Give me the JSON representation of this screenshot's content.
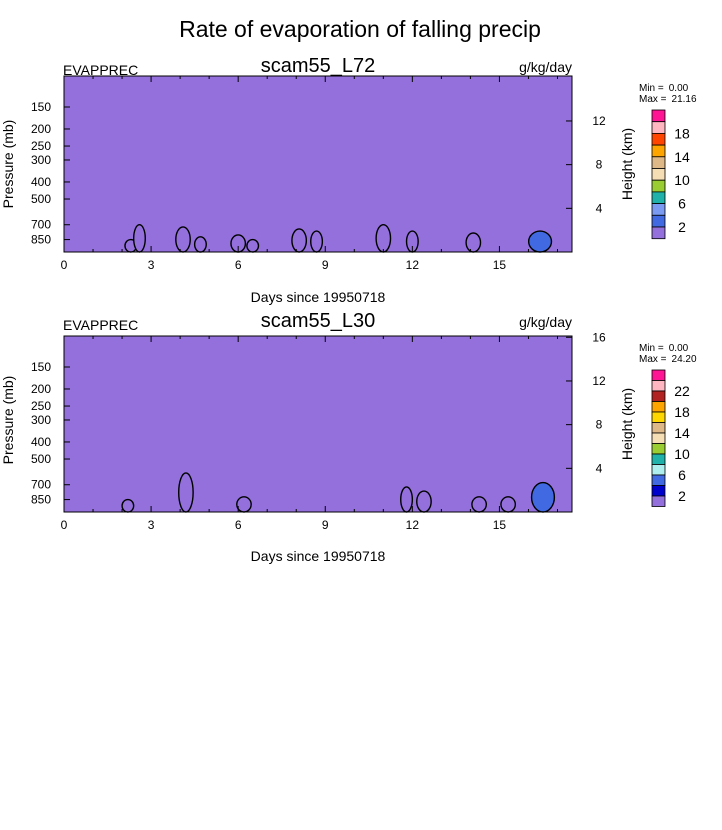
{
  "figure_title": "Rate of evaporation of falling precip",
  "colors": {
    "background_fill": "#9370DB",
    "frame": "#000000",
    "contour_line": "#000000",
    "contour_fill_low": "#4169E1",
    "contour_fill_high": "#0000CD"
  },
  "chart_data": [
    {
      "type": "heatmap",
      "title": "scam55_L72",
      "left_label": "EVAPPREC",
      "right_label": "g/kg/day",
      "xlabel": "Days since 19950718",
      "ylabel": "Pressure (mb)",
      "y2label": "Height (km)",
      "xlim": [
        0,
        17.5
      ],
      "x_ticks": [
        0,
        3,
        6,
        9,
        12,
        15
      ],
      "y_scale": "log",
      "ylim_pressure": [
        1000,
        100
      ],
      "y_ticks": [
        150,
        200,
        250,
        300,
        400,
        500,
        700,
        850
      ],
      "y2_ticks": [
        4,
        8,
        12
      ],
      "minmax": {
        "min_label": "Min =",
        "min": "0.00",
        "max_label": "Max =",
        "max": "21.16"
      },
      "colorbar": {
        "labels": [
          "2",
          "6",
          "10",
          "14",
          "18"
        ],
        "colors": [
          "#9370DB",
          "#4169E1",
          "#7B9BF2",
          "#20B2AA",
          "#9ACD32",
          "#F5DEB3",
          "#DEB887",
          "#FFA500",
          "#FF4500",
          "#FFB6C1",
          "#FF1493"
        ]
      },
      "cells": [
        {
          "day": 2.3,
          "p": 850,
          "v": 2
        },
        {
          "day": 2.6,
          "p": 700,
          "v": 2
        },
        {
          "day": 4.1,
          "p": 720,
          "v": 3
        },
        {
          "day": 4.7,
          "p": 820,
          "v": 2
        },
        {
          "day": 6.0,
          "p": 800,
          "v": 3
        },
        {
          "day": 6.5,
          "p": 850,
          "v": 2
        },
        {
          "day": 8.1,
          "p": 740,
          "v": 3
        },
        {
          "day": 8.7,
          "p": 760,
          "v": 2
        },
        {
          "day": 11.0,
          "p": 700,
          "v": 3
        },
        {
          "day": 12.0,
          "p": 760,
          "v": 2
        },
        {
          "day": 14.1,
          "p": 780,
          "v": 3
        },
        {
          "day": 16.4,
          "p": 760,
          "v": 6
        }
      ]
    },
    {
      "type": "heatmap",
      "title": "scam55_L30",
      "left_label": "EVAPPREC",
      "right_label": "g/kg/day",
      "xlabel": "Days since 19950718",
      "ylabel": "Pressure (mb)",
      "y2label": "Height (km)",
      "xlim": [
        0,
        17.5
      ],
      "x_ticks": [
        0,
        3,
        6,
        9,
        12,
        15
      ],
      "y_scale": "log",
      "ylim_pressure": [
        1000,
        100
      ],
      "y_ticks": [
        150,
        200,
        250,
        300,
        400,
        500,
        700,
        850
      ],
      "y2_ticks": [
        4,
        8,
        12,
        16
      ],
      "minmax": {
        "min_label": "Min =",
        "min": "0.00",
        "max_label": "Max =",
        "max": "24.20"
      },
      "colorbar": {
        "labels": [
          "2",
          "6",
          "10",
          "14",
          "18",
          "22"
        ],
        "colors": [
          "#9370DB",
          "#0000CD",
          "#4169E1",
          "#AFEEEE",
          "#20B2AA",
          "#9ACD32",
          "#F5DEB3",
          "#DEB887",
          "#FFD700",
          "#FFA500",
          "#B22222",
          "#FFB6C1",
          "#FF1493"
        ]
      },
      "cells": [
        {
          "day": 2.2,
          "p": 850,
          "v": 2
        },
        {
          "day": 4.2,
          "p": 600,
          "v": 3
        },
        {
          "day": 6.2,
          "p": 820,
          "v": 3
        },
        {
          "day": 11.8,
          "p": 720,
          "v": 2
        },
        {
          "day": 12.4,
          "p": 760,
          "v": 3
        },
        {
          "day": 14.3,
          "p": 820,
          "v": 3
        },
        {
          "day": 15.3,
          "p": 820,
          "v": 3
        },
        {
          "day": 16.5,
          "p": 680,
          "v": 6
        }
      ]
    }
  ]
}
